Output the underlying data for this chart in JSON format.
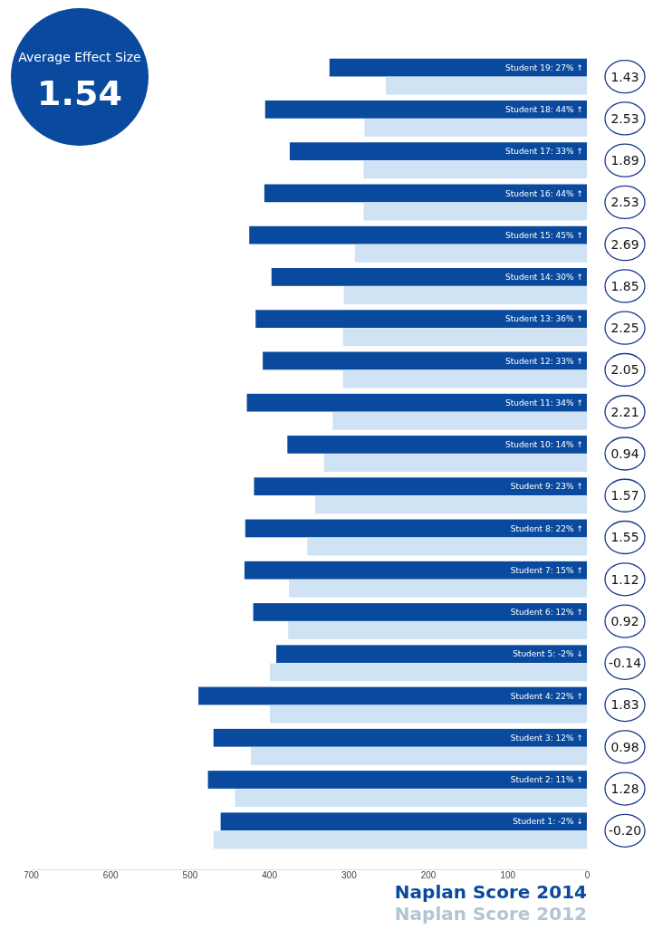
{
  "chart_data": {
    "type": "bar",
    "orientation": "horizontal",
    "categories": [
      "Student 19: 27% ↑",
      "Student 18: 44% ↑",
      "Student 17: 33% ↑",
      "Student 16: 44% ↑",
      "Student 15: 45% ↑",
      "Student 14: 30% ↑",
      "Student 13: 36% ↑",
      "Student 12: 33% ↑",
      "Student 11: 34% ↑",
      "Student 10: 14% ↑",
      "Student 9: 23% ↑",
      "Student 8: 22% ↑",
      "Student 7: 15% ↑",
      "Student 6: 12% ↑",
      "Student 5: -2% ↓",
      "Student 4: 22% ↑",
      "Student 3: 12% ↑",
      "Student 2: 11% ↑",
      "Student 1: -2% ↓"
    ],
    "series": [
      {
        "name": "Naplan Score 2014",
        "color": "#0a4a9e",
        "values": [
          324,
          405,
          374,
          406,
          425,
          397,
          417,
          408,
          428,
          377,
          419,
          430,
          431,
          420,
          391,
          489,
          470,
          477,
          461
        ]
      },
      {
        "name": "Naplan Score 2012",
        "color": "#cfe3f5",
        "values": [
          253,
          280,
          281,
          281,
          292,
          306,
          307,
          307,
          320,
          331,
          342,
          352,
          375,
          376,
          399,
          399,
          423,
          443,
          470
        ]
      }
    ],
    "xlim": [
      700,
      0
    ],
    "xticks": [
      700,
      600,
      500,
      400,
      300,
      200,
      100,
      0
    ],
    "legend": "bottom",
    "annotations": [
      "Average Effect Size",
      "1.54",
      "1.43",
      "2.53",
      "1.89",
      "2.53",
      "2.69",
      "1.85",
      "2.25",
      "2.05",
      "2.21",
      "0.94",
      "1.57",
      "1.55",
      "1.12",
      "0.92",
      "-0.14",
      "1.83",
      "0.98",
      "1.28",
      "-0.20"
    ]
  }
}
